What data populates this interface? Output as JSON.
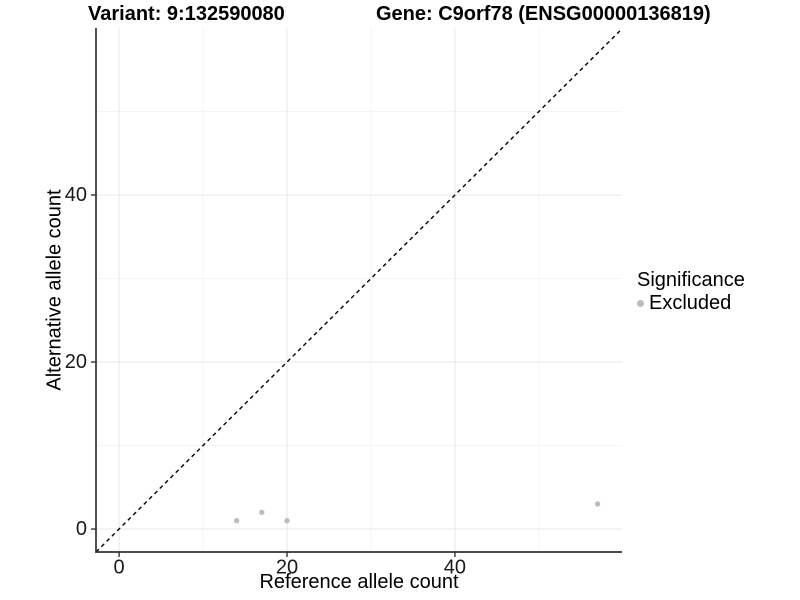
{
  "header": {
    "variant_title": "Variant: 9:132590080",
    "gene_title": "Gene: C9orf78 (ENSG00000136819)"
  },
  "axes": {
    "x_label": "Reference allele count",
    "y_label": "Alternative allele count"
  },
  "legend": {
    "title": "Significance",
    "items": [
      {
        "label": "Excluded",
        "color": "#bdbdbd",
        "marker": "circle"
      }
    ]
  },
  "chart_data": {
    "type": "scatter",
    "title_left": "Variant: 9:132590080",
    "title_right": "Gene: C9orf78 (ENSG00000136819)",
    "xlabel": "Reference allele count",
    "ylabel": "Alternative allele count",
    "xlim": [
      -2.75,
      59.9
    ],
    "ylim": [
      -2.75,
      60
    ],
    "x_ticks": [
      0,
      20,
      40
    ],
    "y_ticks": [
      0,
      20,
      40
    ],
    "x_minor_gridlines": [
      10,
      30,
      50
    ],
    "y_minor_gridlines": [
      10,
      30,
      50
    ],
    "grid": true,
    "legend_position": "right",
    "series": [
      {
        "name": "Excluded",
        "color": "#bdbdbd",
        "points": [
          [
            14,
            1
          ],
          [
            17,
            2
          ],
          [
            20,
            1
          ],
          [
            57,
            3
          ]
        ]
      }
    ],
    "reference_line": {
      "type": "identity",
      "slope": 1,
      "intercept": 0,
      "style": "dashed",
      "color": "#000000"
    }
  },
  "colors": {
    "background": "#ffffff",
    "axis_line": "#333333",
    "tick_label": "#1a1a1a",
    "grid_major": "#e7e7e7",
    "grid_minor": "#f3f3f3",
    "point": "#bdbdbd"
  }
}
